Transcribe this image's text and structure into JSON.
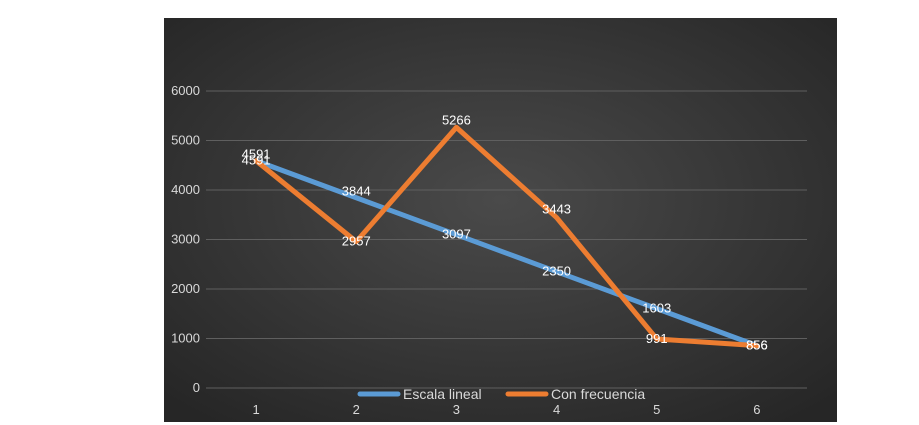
{
  "chart_data": {
    "type": "line",
    "title": "",
    "xlabel": "",
    "ylabel": "",
    "x": [
      1,
      2,
      3,
      4,
      5,
      6
    ],
    "ylim": [
      0,
      6000
    ],
    "yticks": [
      0,
      1000,
      2000,
      3000,
      4000,
      5000,
      6000
    ],
    "grid": true,
    "legend_position": "bottom",
    "series": [
      {
        "name": "Escala lineal",
        "color": "#5b9bd5",
        "values": [
          4591,
          3844,
          3097,
          2350,
          1603,
          856
        ]
      },
      {
        "name": "Con frecuencia",
        "color": "#ed7d31",
        "values": [
          4591,
          2957,
          5266,
          3443,
          991,
          856
        ]
      }
    ]
  },
  "colors": {
    "background_gradient_center": "#4a4a4a",
    "background_gradient_edge": "#262626",
    "grid": "#5f5f5f"
  }
}
